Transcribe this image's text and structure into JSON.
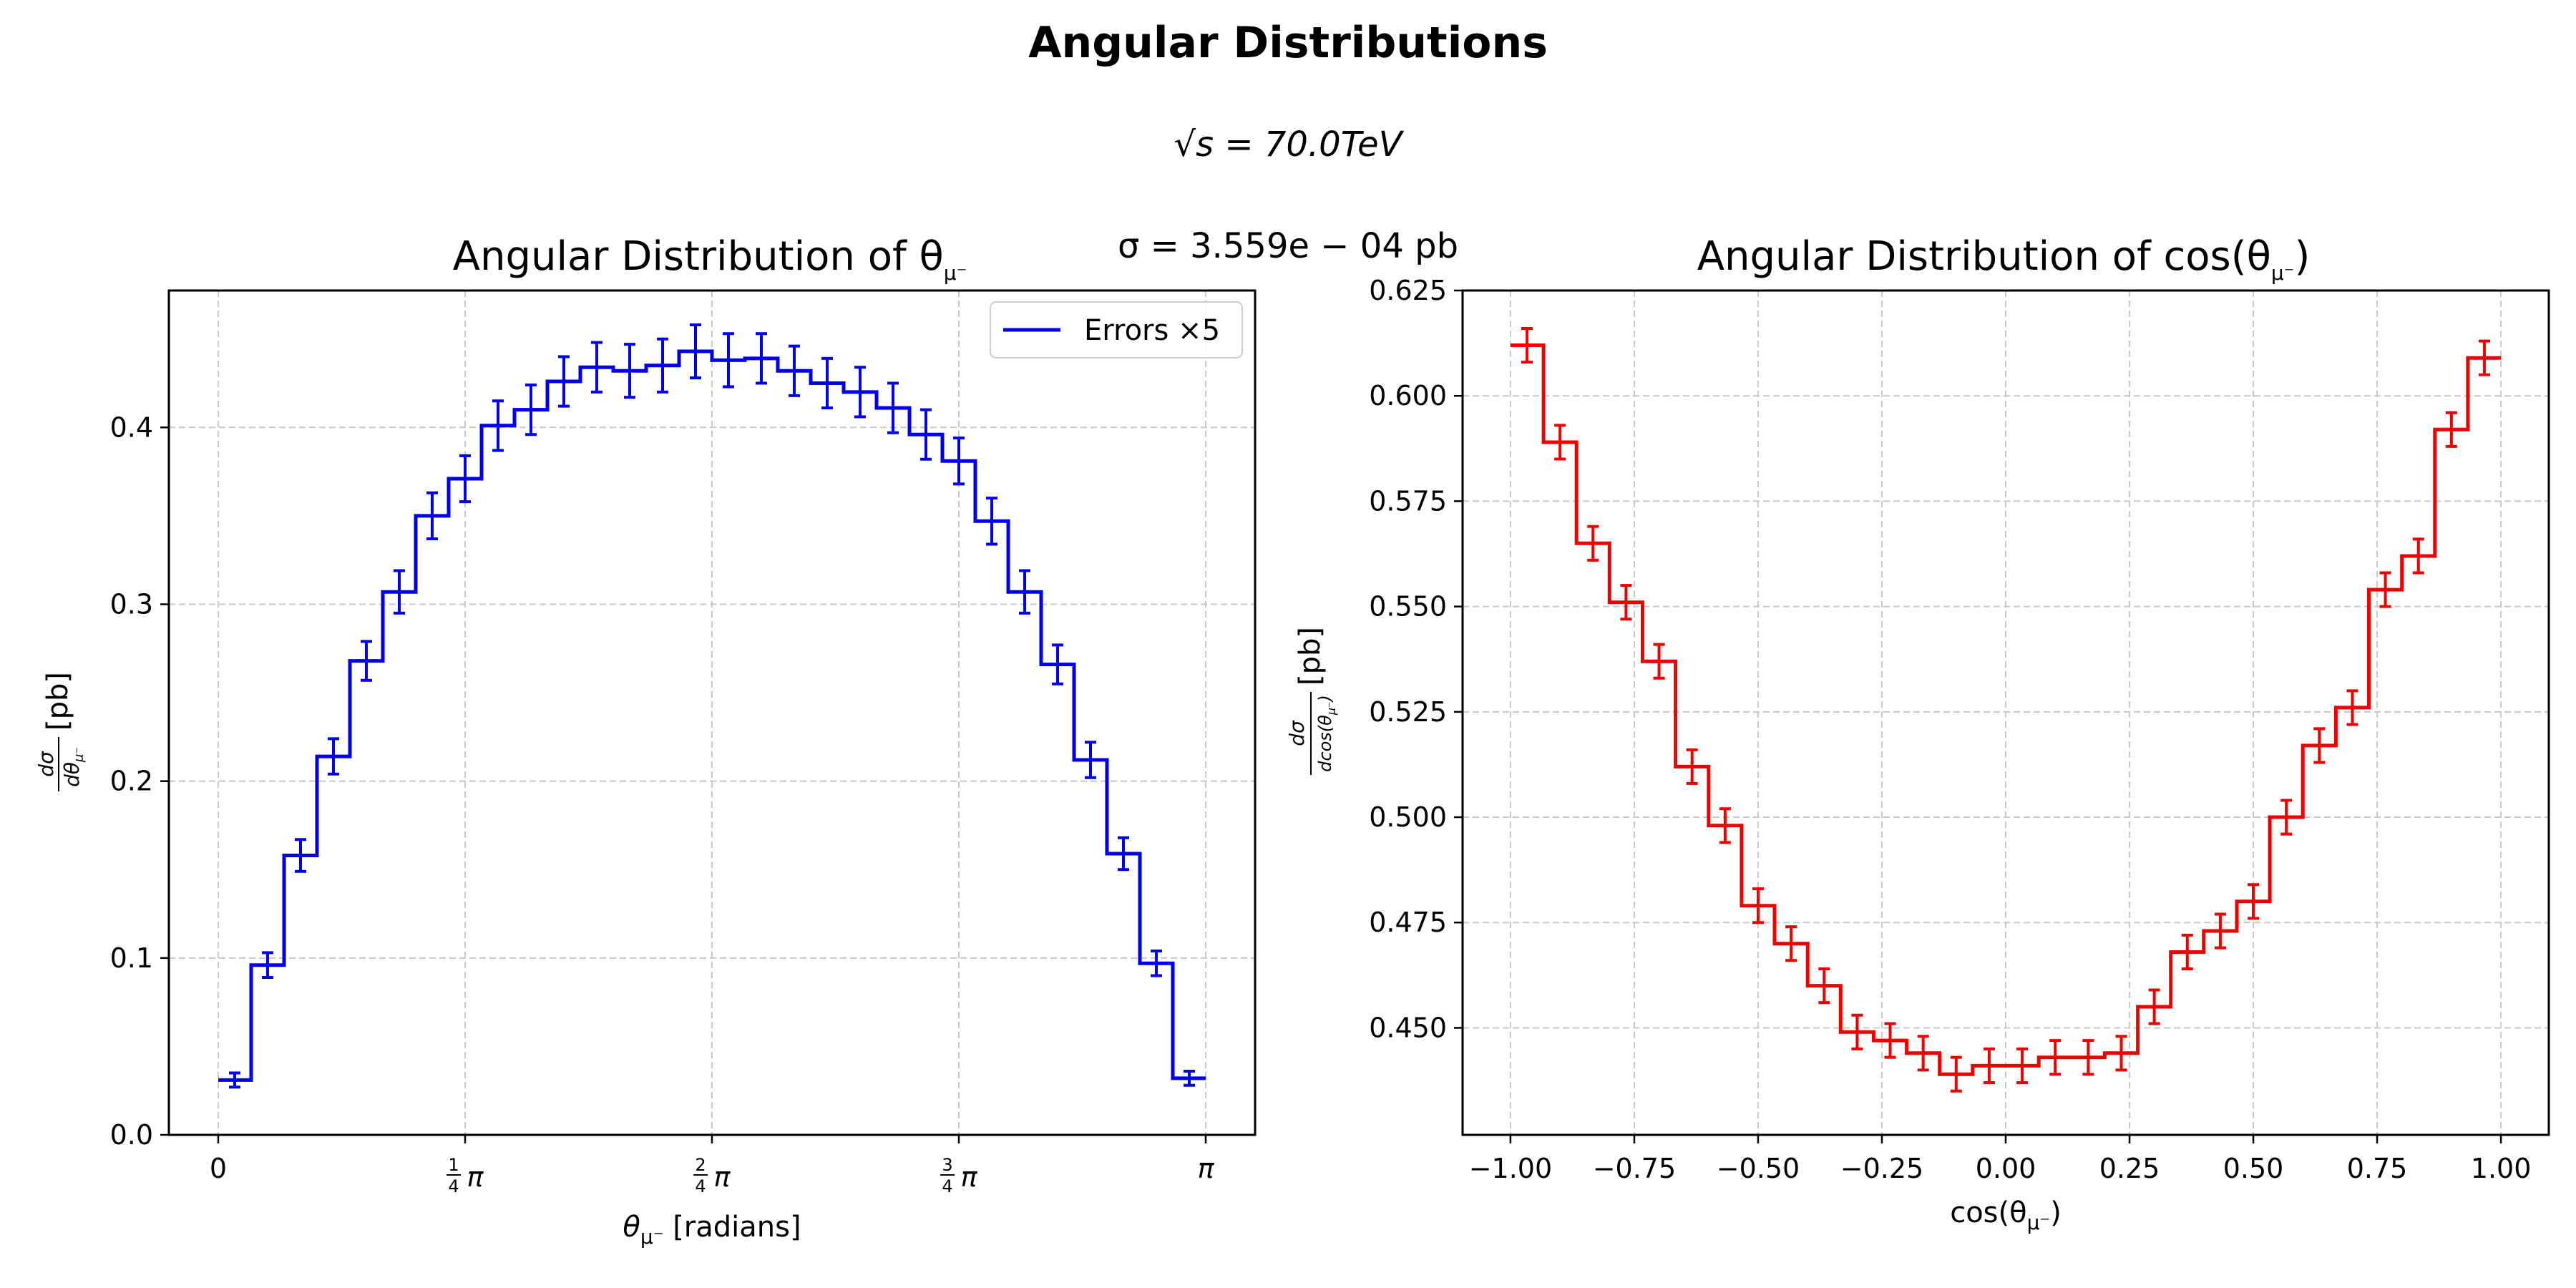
{
  "figure": {
    "title": "Angular Distributions",
    "energy_label": "√s = 70.0TeV",
    "cross_section_label": "σ = 3.559e − 04 pb"
  },
  "chart_data": [
    {
      "type": "line",
      "drawstyle": "steps",
      "title": "Angular Distribution of θ",
      "title_sub": "μ⁻",
      "xlabel": "θ",
      "xlabel_sub": "μ⁻",
      "xlabel_unit": " [radians]",
      "ylabel_num": "dσ",
      "ylabel_den": "dθ",
      "ylabel_den_sub": "μ⁻",
      "ylabel_unit": "[pb]",
      "color": "#0000ee",
      "xlim": [
        -0.157,
        3.2986
      ],
      "ylim": [
        0.0,
        0.4774
      ],
      "grid": true,
      "legend": {
        "label": "Errors ×5",
        "placement": "top-right"
      },
      "x_ticks": [
        {
          "value": 0.0,
          "label": "0"
        },
        {
          "value": 0.7854,
          "label": "π",
          "frac": "1/4"
        },
        {
          "value": 1.5708,
          "label": "π",
          "frac": "2/4"
        },
        {
          "value": 2.3562,
          "label": "π",
          "frac": "3/4"
        },
        {
          "value": 3.1416,
          "label": "π"
        }
      ],
      "y_ticks": [
        {
          "value": 0.0,
          "label": "0.0"
        },
        {
          "value": 0.1,
          "label": "0.1"
        },
        {
          "value": 0.2,
          "label": "0.2"
        },
        {
          "value": 0.3,
          "label": "0.3"
        },
        {
          "value": 0.4,
          "label": "0.4"
        }
      ],
      "bin_edges": [
        0.0,
        0.1047,
        0.2094,
        0.3142,
        0.4189,
        0.5236,
        0.6283,
        0.733,
        0.8378,
        0.9425,
        1.0472,
        1.1519,
        1.2566,
        1.3614,
        1.4661,
        1.5708,
        1.6755,
        1.7802,
        1.885,
        1.9897,
        2.0944,
        2.1991,
        2.3038,
        2.4086,
        2.5133,
        2.618,
        2.7227,
        2.8274,
        2.9322,
        3.0369,
        3.1416
      ],
      "values": [
        0.031,
        0.096,
        0.158,
        0.214,
        0.268,
        0.307,
        0.35,
        0.371,
        0.401,
        0.41,
        0.426,
        0.434,
        0.432,
        0.435,
        0.443,
        0.438,
        0.439,
        0.432,
        0.425,
        0.42,
        0.411,
        0.396,
        0.381,
        0.347,
        0.307,
        0.266,
        0.212,
        0.159,
        0.097,
        0.032
      ],
      "errors": [
        0.004,
        0.007,
        0.009,
        0.01,
        0.011,
        0.012,
        0.013,
        0.013,
        0.014,
        0.014,
        0.014,
        0.014,
        0.015,
        0.015,
        0.015,
        0.015,
        0.014,
        0.014,
        0.014,
        0.014,
        0.014,
        0.014,
        0.013,
        0.013,
        0.012,
        0.011,
        0.01,
        0.009,
        0.007,
        0.004
      ]
    },
    {
      "type": "line",
      "drawstyle": "steps",
      "title": "Angular Distribution of cos(θ",
      "title_sub": "μ⁻",
      "title_end": ")",
      "xlabel": "cos(θ",
      "xlabel_sub": "μ⁻",
      "xlabel_end": ")",
      "ylabel_num": "dσ",
      "ylabel_den": "dcos(θ",
      "ylabel_den_sub": "μ⁻",
      "ylabel_den_end": ")",
      "ylabel_unit": "[pb]",
      "color": "#ee0000",
      "xlim": [
        -1.0967,
        1.0967
      ],
      "ylim": [
        0.4246,
        0.625
      ],
      "grid": true,
      "x_ticks": [
        {
          "value": -1.0,
          "label": "−1.00"
        },
        {
          "value": -0.75,
          "label": "−0.75"
        },
        {
          "value": -0.5,
          "label": "−0.50"
        },
        {
          "value": -0.25,
          "label": "−0.25"
        },
        {
          "value": 0.0,
          "label": "0.00"
        },
        {
          "value": 0.25,
          "label": "0.25"
        },
        {
          "value": 0.5,
          "label": "0.50"
        },
        {
          "value": 0.75,
          "label": "0.75"
        },
        {
          "value": 1.0,
          "label": "1.00"
        }
      ],
      "y_ticks": [
        {
          "value": 0.45,
          "label": "0.450"
        },
        {
          "value": 0.475,
          "label": "0.475"
        },
        {
          "value": 0.5,
          "label": "0.500"
        },
        {
          "value": 0.525,
          "label": "0.525"
        },
        {
          "value": 0.55,
          "label": "0.550"
        },
        {
          "value": 0.575,
          "label": "0.575"
        },
        {
          "value": 0.6,
          "label": "0.600"
        },
        {
          "value": 0.625,
          "label": "0.625"
        }
      ],
      "bin_edges": [
        -1.0,
        -0.9333,
        -0.8667,
        -0.8,
        -0.7333,
        -0.6667,
        -0.6,
        -0.5333,
        -0.4667,
        -0.4,
        -0.3333,
        -0.2667,
        -0.2,
        -0.1333,
        -0.0667,
        0.0,
        0.0667,
        0.1333,
        0.2,
        0.2667,
        0.3333,
        0.4,
        0.4667,
        0.5333,
        0.6,
        0.6667,
        0.7333,
        0.8,
        0.8667,
        0.9333,
        1.0
      ],
      "values": [
        0.612,
        0.589,
        0.565,
        0.551,
        0.537,
        0.512,
        0.498,
        0.479,
        0.47,
        0.46,
        0.449,
        0.447,
        0.444,
        0.439,
        0.441,
        0.441,
        0.443,
        0.443,
        0.444,
        0.455,
        0.468,
        0.473,
        0.48,
        0.5,
        0.517,
        0.526,
        0.554,
        0.562,
        0.592,
        0.609
      ],
      "errors": [
        0.004,
        0.004,
        0.004,
        0.004,
        0.004,
        0.004,
        0.004,
        0.004,
        0.004,
        0.004,
        0.004,
        0.004,
        0.004,
        0.004,
        0.004,
        0.004,
        0.004,
        0.004,
        0.004,
        0.004,
        0.004,
        0.004,
        0.004,
        0.004,
        0.004,
        0.004,
        0.004,
        0.004,
        0.004,
        0.004
      ]
    }
  ]
}
